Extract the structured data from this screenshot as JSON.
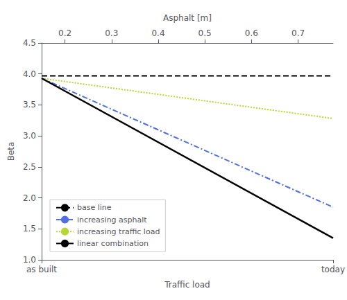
{
  "chart_data": {
    "type": "line",
    "xlabel": "Traffic load",
    "x2label": "Asphalt [m]",
    "ylabel": "Beta",
    "categories": [
      "as built",
      "today"
    ],
    "ylim": [
      1.0,
      4.5
    ],
    "yticks": [
      {
        "value": 1.0,
        "label": "1.0"
      },
      1.5,
      {
        "value": 2.0,
        "label": "2.0"
      },
      2.5,
      {
        "value": 3.0,
        "label": "3.0"
      },
      3.5,
      {
        "value": 4.0,
        "label": "4.0"
      },
      4.5
    ],
    "x2lim": [
      0.15,
      0.775
    ],
    "x2ticks": [
      0.2,
      0.3,
      0.4,
      0.5,
      0.6,
      0.7
    ],
    "grid": false,
    "legend": "lower left",
    "series": [
      {
        "name": "base line",
        "color": "#000000",
        "line_style": "dashed",
        "values": [
          3.97,
          3.97
        ]
      },
      {
        "name": "increasing asphalt",
        "line_style": "dashdot",
        "values": [
          3.93,
          1.85
        ]
      },
      {
        "name": "increasing traffic load",
        "line_style": "dotted",
        "values": [
          3.93,
          3.28
        ]
      },
      {
        "name": "linear combination",
        "color": "#000000",
        "line_style": "solid",
        "values": [
          3.93,
          1.35
        ]
      }
    ]
  }
}
